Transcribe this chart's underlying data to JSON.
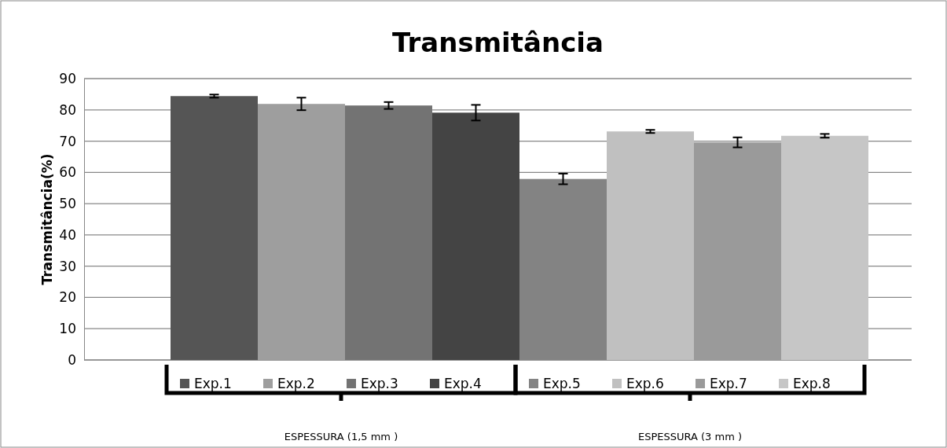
{
  "chart_data": {
    "type": "bar",
    "title": "Transmitância",
    "ylabel": "Transmitância(%)",
    "categories": [
      "ESPESSURA (1,5 mm )",
      "ESPESSURA (3 mm )"
    ],
    "series": [
      {
        "name": "Exp.1",
        "color": "#555555",
        "values": [
          84.4,
          null
        ],
        "errors": [
          0.5,
          null
        ]
      },
      {
        "name": "Exp.2",
        "color": "#9e9e9e",
        "values": [
          81.9,
          null
        ],
        "errors": [
          2,
          null
        ]
      },
      {
        "name": "Exp.3",
        "color": "#737373",
        "values": [
          81.4,
          null
        ],
        "errors": [
          1.1,
          null
        ]
      },
      {
        "name": "Exp.4",
        "color": "#444444",
        "values": [
          79.1,
          null
        ],
        "errors": [
          2.5,
          null
        ]
      },
      {
        "name": "Exp.5",
        "color": "#838383",
        "values": [
          null,
          57.9
        ],
        "errors": [
          null,
          1.7
        ]
      },
      {
        "name": "Exp.6",
        "color": "#c0c0c0",
        "values": [
          null,
          73.1
        ],
        "errors": [
          null,
          0.5
        ]
      },
      {
        "name": "Exp.7",
        "color": "#9a9a9a",
        "values": [
          null,
          69.6
        ],
        "errors": [
          null,
          1.6
        ]
      },
      {
        "name": "Exp.8",
        "color": "#c6c6c6",
        "values": [
          null,
          71.7
        ],
        "errors": [
          null,
          0.6
        ]
      }
    ],
    "ylim": [
      0,
      90
    ],
    "yticks": [
      0,
      10,
      20,
      30,
      40,
      50,
      60,
      70,
      80,
      90
    ],
    "grid": "y",
    "legend": "bottom"
  }
}
